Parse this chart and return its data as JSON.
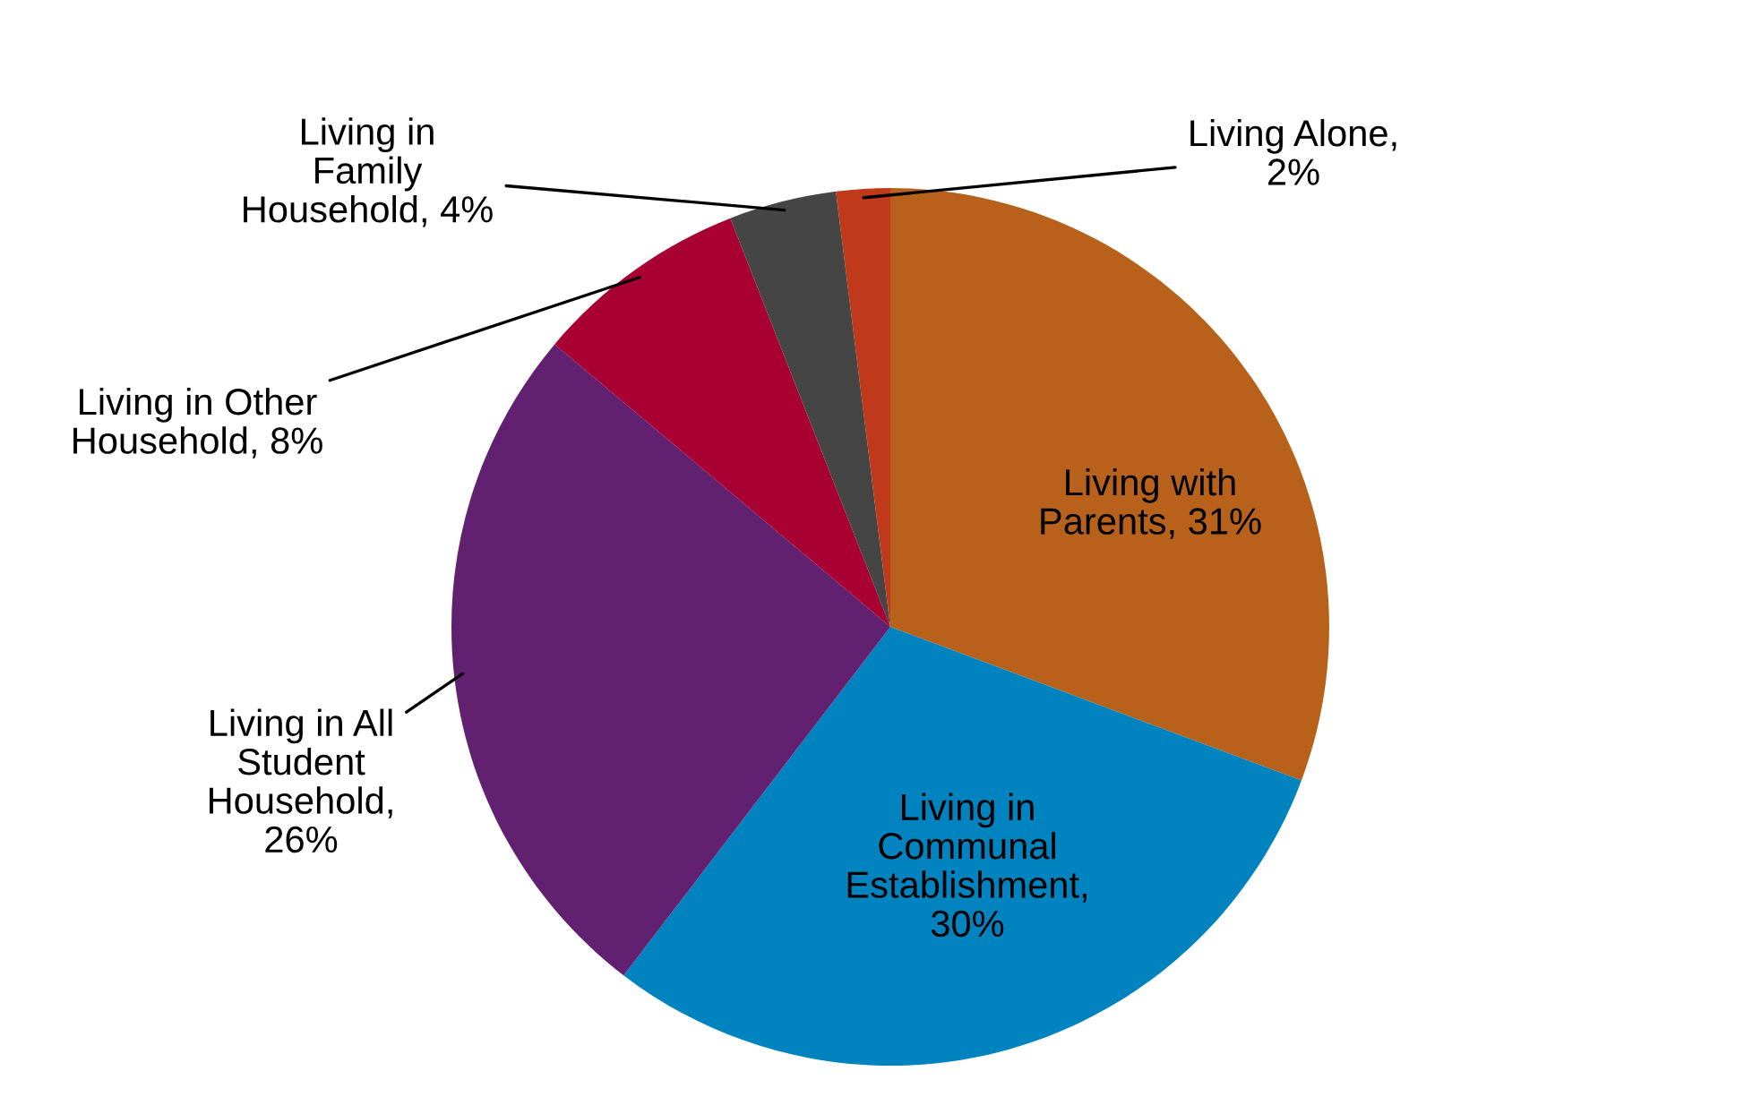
{
  "chart_data": {
    "type": "pie",
    "categories": [
      "Living with\nParents",
      "Living in\nCommunal\nEstablishment",
      "Living in All\nStudent\nHousehold",
      "Living in Other\nHousehold",
      "Living in\nFamily\nHousehold",
      "Living Alone"
    ],
    "value_labels": [
      ", 31%",
      ",\n30%",
      ",\n26%",
      ", 8%",
      ", 4%",
      ",\n2%"
    ],
    "values": [
      31,
      30,
      26,
      8,
      4,
      2
    ],
    "colors": [
      "#b8611a",
      "#0083bf",
      "#612070",
      "#a80032",
      "#454545",
      "#c0391b"
    ],
    "legend": false
  }
}
